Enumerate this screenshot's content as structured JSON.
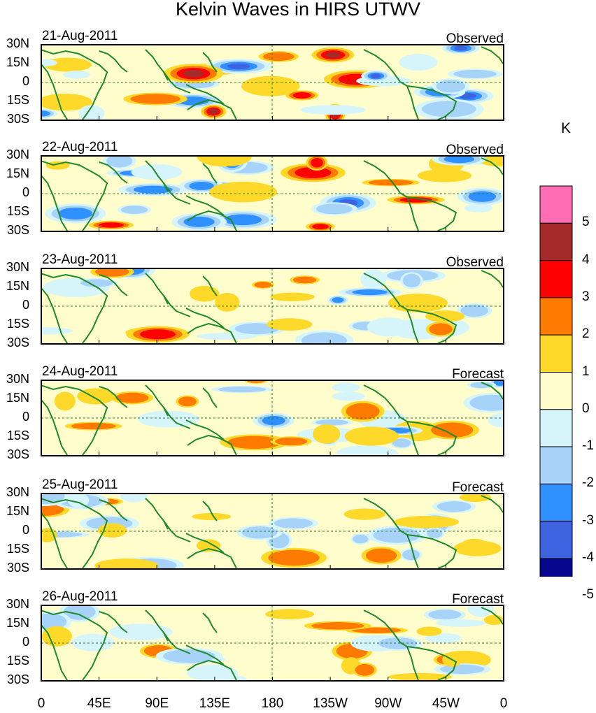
{
  "title": "Kelvin Waves in HIRS UTWV",
  "unit": "K",
  "lat_labels": [
    "30N",
    "15N",
    "0",
    "15S",
    "30S"
  ],
  "lon_labels": [
    "0",
    "45E",
    "90E",
    "135E",
    "180",
    "135W",
    "90W",
    "45W",
    "0"
  ],
  "colorbar": {
    "levels": [
      "5",
      "4",
      "3",
      "2",
      "1",
      "0",
      "-1",
      "-2",
      "-3",
      "-4",
      "-5"
    ],
    "colors": [
      "#ff6eb4",
      "#a52a2a",
      "#ff0000",
      "#ff7a00",
      "#ffd92a",
      "#fffdcc",
      "#d6f5fb",
      "#a7d3f8",
      "#2f90ff",
      "#3e63e0",
      "#06068f",
      "#8b2be2"
    ]
  },
  "panels": [
    {
      "date": "21-Aug-2011",
      "kind": "Observed"
    },
    {
      "date": "22-Aug-2011",
      "kind": "Observed"
    },
    {
      "date": "23-Aug-2011",
      "kind": "Observed"
    },
    {
      "date": "24-Aug-2011",
      "kind": "Forecast"
    },
    {
      "date": "25-Aug-2011",
      "kind": "Forecast"
    },
    {
      "date": "26-Aug-2011",
      "kind": "Forecast"
    }
  ]
}
